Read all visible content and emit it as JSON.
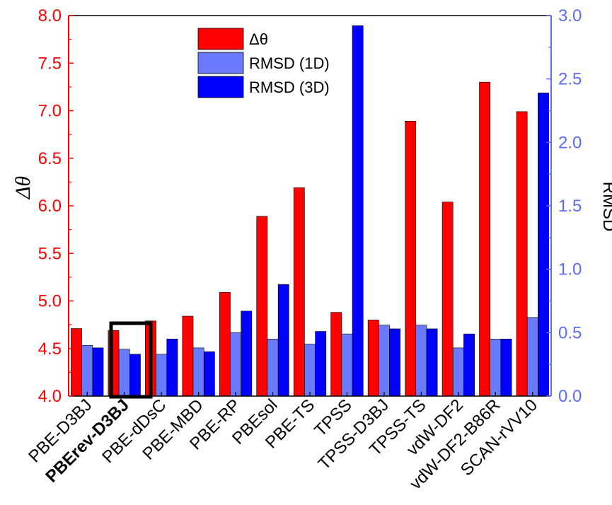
{
  "chart_data": {
    "type": "bar",
    "categories": [
      "PBE-D3BJ",
      "PBErev-D3BJ",
      "PBE-dDsC",
      "PBE-MBD",
      "PBE-RP",
      "PBEsol",
      "PBE-TS",
      "TPSS",
      "TPSS-D3BJ",
      "TPSS-TS",
      "vdW-DF2",
      "vdW-DF2-B86R",
      "SCAN-rVV10"
    ],
    "highlighted_category": "PBErev-D3BJ",
    "series": [
      {
        "name": "Δθ",
        "axis": "left",
        "color": "#ff0000",
        "values": [
          4.71,
          4.69,
          4.79,
          4.84,
          5.09,
          5.89,
          6.19,
          4.88,
          4.8,
          6.89,
          6.04,
          7.3,
          6.99
        ]
      },
      {
        "name": "RMSD (1D)",
        "axis": "right",
        "color": "#6b7bff",
        "values": [
          0.4,
          0.37,
          0.33,
          0.38,
          0.5,
          0.45,
          0.41,
          0.49,
          0.56,
          0.56,
          0.38,
          0.45,
          0.62
        ]
      },
      {
        "name": "RMSD (3D)",
        "axis": "right",
        "color": "#0000ff",
        "values": [
          0.38,
          0.33,
          0.45,
          0.35,
          0.67,
          0.88,
          0.51,
          2.92,
          0.53,
          0.53,
          0.49,
          0.45,
          2.39
        ]
      }
    ],
    "ylabel_left": "Δθ",
    "ylabel_right": "RMSD",
    "ylim_left": [
      4.0,
      8.0
    ],
    "ylim_right": [
      0.0,
      3.0
    ],
    "yticks_left": [
      "4.0",
      "4.5",
      "5.0",
      "5.5",
      "6.0",
      "6.5",
      "7.0",
      "7.5",
      "8.0"
    ],
    "yticks_right": [
      "0.0",
      "0.5",
      "1.0",
      "1.5",
      "2.0",
      "2.5",
      "3.0"
    ],
    "left_axis_color": "#ff0000",
    "right_axis_color": "#5b6bff",
    "legend_position": "top-center",
    "grid": false
  }
}
